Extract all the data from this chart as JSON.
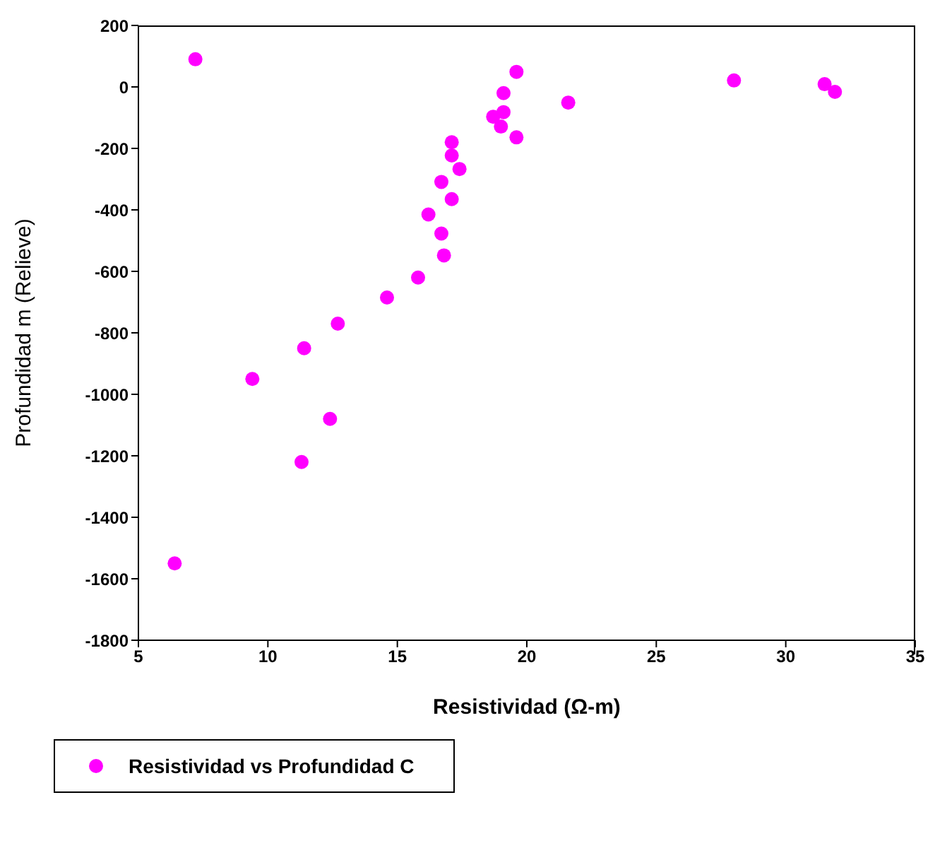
{
  "chart_data": {
    "type": "scatter",
    "xlabel": "Resistividad (Ω-m)",
    "ylabel": "Profundidad m (Relieve)",
    "xlim": [
      5,
      35
    ],
    "xticks": [
      5,
      10,
      15,
      20,
      25,
      30,
      35
    ],
    "ylim": [
      -1800,
      200
    ],
    "yticks": [
      -1800,
      -1600,
      -1400,
      -1200,
      -1000,
      -800,
      -600,
      -400,
      -200,
      0,
      200
    ],
    "grid": false,
    "legend": "bottom left",
    "marker": "circle",
    "series": [
      {
        "name": "Resistividad vs Profundidad C",
        "color": "#ff00ff",
        "x": [
          7.2,
          6.4,
          9.4,
          11.4,
          11.3,
          12.4,
          12.7,
          14.6,
          15.8,
          16.8,
          16.7,
          16.2,
          17.1,
          16.7,
          17.4,
          17.1,
          17.1,
          18.7,
          19.1,
          19.0,
          19.1,
          19.6,
          19.6,
          21.6,
          28.0,
          31.5,
          31.9
        ],
        "values": [
          90,
          -1550,
          -950,
          -850,
          -1220,
          -1080,
          -770,
          -685,
          -620,
          -548,
          -477,
          -415,
          -365,
          -309,
          -267,
          -223,
          -180,
          -97,
          -82,
          -129,
          -20,
          49,
          -164,
          -51,
          21,
          9,
          -16
        ]
      }
    ]
  }
}
